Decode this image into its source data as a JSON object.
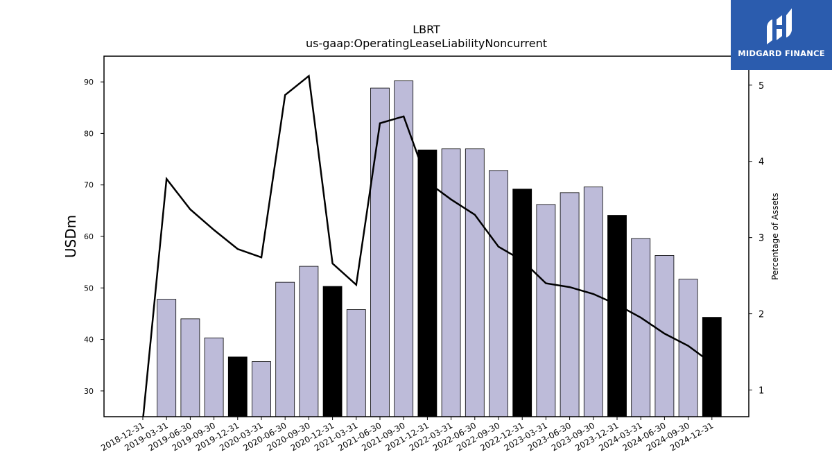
{
  "chart_data": {
    "type": "bar",
    "title": "LBRT",
    "subtitle": "us-gaap:OperatingLeaseLiabilityNoncurrent",
    "ylabel": "USDm",
    "y2label": "Percentage of Assets",
    "ylim": [
      25,
      95
    ],
    "y2lim": [
      0.65,
      5.38
    ],
    "yticks": [
      30,
      40,
      50,
      60,
      70,
      80,
      90
    ],
    "y2ticks": [
      1,
      2,
      3,
      4,
      5
    ],
    "categories": [
      "2018-12-31",
      "2019-03-31",
      "2019-06-30",
      "2019-09-30",
      "2019-12-31",
      "2020-03-31",
      "2020-06-30",
      "2020-09-30",
      "2020-12-31",
      "2021-03-31",
      "2021-06-30",
      "2021-09-30",
      "2021-12-31",
      "2022-03-31",
      "2022-06-30",
      "2022-09-30",
      "2022-12-31",
      "2023-03-31",
      "2023-06-30",
      "2023-09-30",
      "2023-12-31",
      "2024-03-31",
      "2024-06-30",
      "2024-09-30",
      "2024-12-31"
    ],
    "series": [
      {
        "type": "bar",
        "values": [
          null,
          47.8,
          44.0,
          40.3,
          36.6,
          35.7,
          51.1,
          54.2,
          50.3,
          45.8,
          88.8,
          90.2,
          76.8,
          77.0,
          77.0,
          72.8,
          69.2,
          66.2,
          68.5,
          69.6,
          64.1,
          59.6,
          56.3,
          51.7,
          44.3
        ],
        "highlight": [
          false,
          false,
          false,
          false,
          true,
          false,
          false,
          false,
          true,
          false,
          false,
          false,
          true,
          false,
          false,
          false,
          true,
          false,
          false,
          false,
          true,
          false,
          false,
          false,
          true
        ],
        "color": "#bdbbd9",
        "highlight_color": "#000000"
      },
      {
        "type": "line",
        "axis": "right",
        "values": [
          0.6,
          3.77,
          3.37,
          3.1,
          2.85,
          2.74,
          4.87,
          5.12,
          2.66,
          2.38,
          4.5,
          4.59,
          3.73,
          3.5,
          3.3,
          2.88,
          2.7,
          2.4,
          2.35,
          2.26,
          2.12,
          1.95,
          1.74,
          1.58,
          1.35
        ],
        "color": "#000000"
      }
    ]
  },
  "logo": {
    "text": "MIDGARD FINANCE",
    "color": "#2b5cae"
  }
}
